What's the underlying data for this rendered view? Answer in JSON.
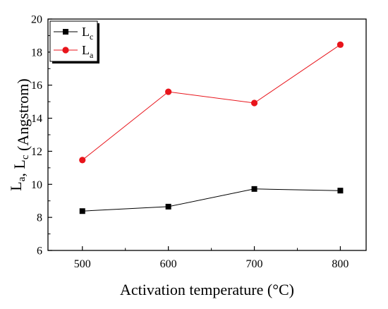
{
  "chart_data": {
    "type": "line",
    "xlabel": "Activation temperature (°C)",
    "ylabel": {
      "parts": [
        {
          "text": "L",
          "sub": false
        },
        {
          "text": "a",
          "sub": true
        },
        {
          "text": ", L",
          "sub": false
        },
        {
          "text": "c",
          "sub": true
        },
        {
          "text": " (Angstrom)",
          "sub": false
        }
      ]
    },
    "x": [
      500,
      600,
      700,
      800
    ],
    "xlim": [
      460,
      830
    ],
    "ylim": [
      6,
      20
    ],
    "xticks": [
      500,
      600,
      700,
      800
    ],
    "yticks": [
      6,
      8,
      10,
      12,
      14,
      16,
      18,
      20
    ],
    "legend_position": "top-left",
    "grid": false,
    "series": [
      {
        "name": "L",
        "sub": "c",
        "marker": "square",
        "color": "#000000",
        "values": [
          8.38,
          8.65,
          9.72,
          9.62
        ]
      },
      {
        "name": "L",
        "sub": "a",
        "marker": "circle",
        "color": "#e8141b",
        "values": [
          11.47,
          15.6,
          14.92,
          18.45
        ]
      }
    ]
  }
}
